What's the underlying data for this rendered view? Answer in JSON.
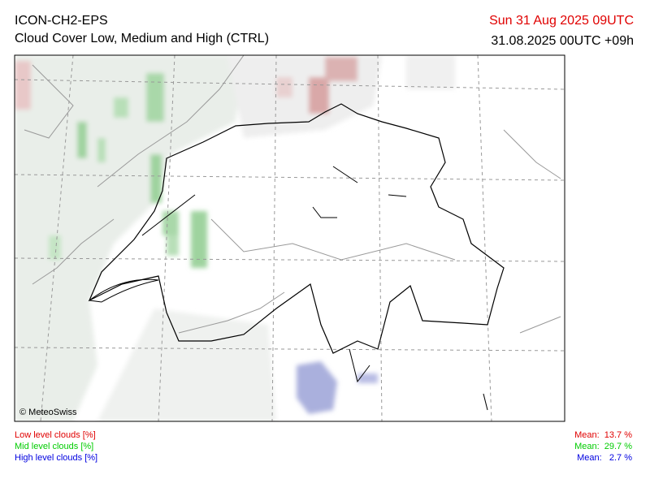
{
  "header": {
    "model": "ICON-CH2-EPS",
    "subtitle": "Cloud Cover Low, Medium and High (CTRL)",
    "valid_time": "Sun 31 Aug 2025 09UTC",
    "run": "31.08.2025 00UTC +09h"
  },
  "map": {
    "credit": "© MeteoSwiss"
  },
  "legend": [
    {
      "label": "Low level clouds [%]",
      "mean": "Mean:  13.7 %"
    },
    {
      "label": "Mid level clouds [%]",
      "mean": "Mean:  29.7 %"
    },
    {
      "label": "High level clouds [%]",
      "mean": "Mean:   2.7 %"
    }
  ]
}
